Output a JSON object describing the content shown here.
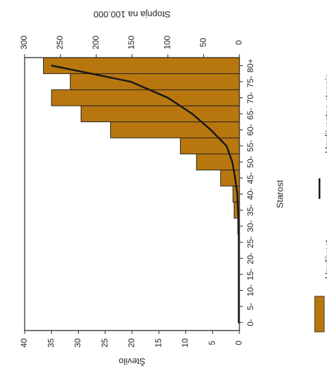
{
  "chart_data": {
    "type": "bar",
    "orientation": "rotated",
    "categories": [
      "0-",
      "5-",
      "10-",
      "15-",
      "20-",
      "25-",
      "30-",
      "35-",
      "40-",
      "45-",
      "50-",
      "55-",
      "60-",
      "65-",
      "70-",
      "75-",
      "80+"
    ],
    "series": [
      {
        "name": "Umrljivost",
        "kind": "bar",
        "axis": "Število",
        "color": "#b8770e",
        "values": [
          0,
          0,
          0,
          0,
          0,
          0,
          0.3,
          1.0,
          1.2,
          3.5,
          8.0,
          11.0,
          24.0,
          29.5,
          35.0,
          31.5,
          36.5
        ]
      },
      {
        "name": "Umrljivostna stopnja",
        "kind": "line",
        "axis": "Stopnja na 100.000",
        "color": "#1a1a1a",
        "values": [
          1,
          1,
          1,
          1,
          1,
          1,
          1,
          2,
          3,
          6,
          10,
          18,
          40,
          66,
          100,
          152,
          262
        ]
      }
    ],
    "axes": {
      "count": {
        "label": "Število",
        "range": [
          0,
          40
        ],
        "ticks": [
          "0",
          "5",
          "10",
          "15",
          "20",
          "25",
          "30",
          "35",
          "40"
        ]
      },
      "rate": {
        "label": "Stopnja na 100.000",
        "range": [
          0,
          300
        ],
        "ticks": [
          "0",
          "50",
          "100",
          "150",
          "200",
          "250",
          "300"
        ]
      },
      "category": {
        "label": "Starost"
      }
    },
    "legend": [
      {
        "name": "Umrljivost",
        "symbol": "box",
        "color": "#b8770e"
      },
      {
        "name": "Umrljivostna stopnja",
        "symbol": "line",
        "color": "#1a1a1a"
      }
    ],
    "rotation": "180deg-mirrored (printed upside down)",
    "grid": false,
    "legend_position": "left"
  }
}
